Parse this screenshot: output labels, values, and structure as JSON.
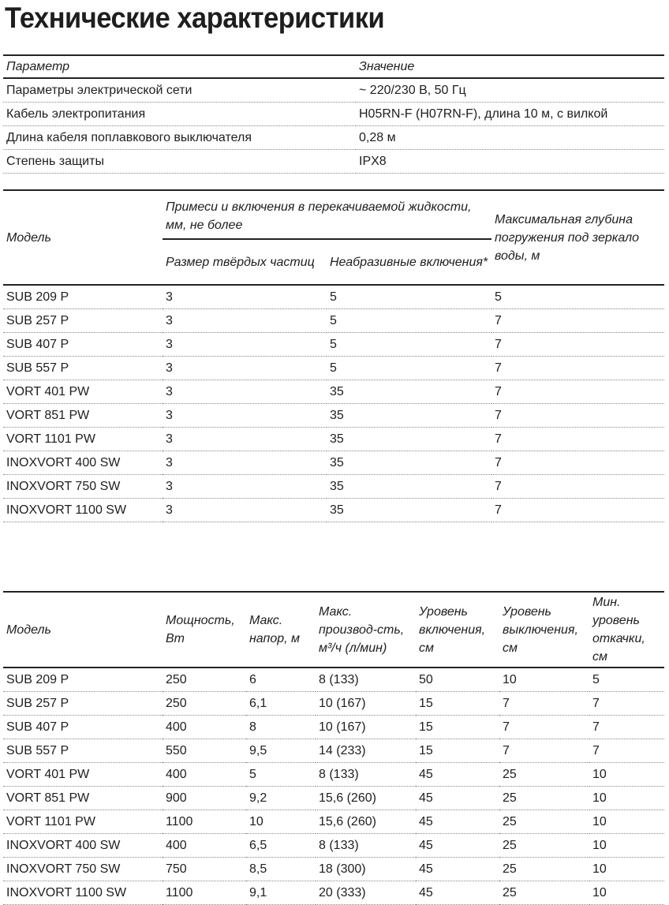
{
  "title": "Технические характеристики",
  "general": {
    "headers": [
      "Параметр",
      "Значение"
    ],
    "rows": [
      [
        "Параметры электрической сети",
        "~ 220/230 В, 50 Гц"
      ],
      [
        "Кабель электропитания",
        "H05RN-F (H07RN-F), длина 10 м, с вилкой"
      ],
      [
        "Длина кабеля поплавкового выключателя",
        "0,28 м"
      ],
      [
        "Степень защиты",
        "IPX8"
      ]
    ]
  },
  "impurities": {
    "model_header": "Модель",
    "group_header": "Примеси и включения в перекачиваемой жидкости, мм, не более",
    "sub_headers": [
      "Размер твёрдых частиц",
      "Неабразивные включения*"
    ],
    "depth_header": "Максимальная глубина погружения под зеркало воды, м",
    "rows": [
      [
        "SUB 209 P",
        "3",
        "5",
        "5"
      ],
      [
        "SUB 257 P",
        "3",
        "5",
        "7"
      ],
      [
        "SUB 407 P",
        "3",
        "5",
        "7"
      ],
      [
        "SUB 557 P",
        "3",
        "5",
        "7"
      ],
      [
        "VORT 401 PW",
        "3",
        "35",
        "7"
      ],
      [
        "VORT 851 PW",
        "3",
        "35",
        "7"
      ],
      [
        "VORT 1101 PW",
        "3",
        "35",
        "7"
      ],
      [
        "INOXVORT 400 SW",
        "3",
        "35",
        "7"
      ],
      [
        "INOXVORT 750 SW",
        "3",
        "35",
        "7"
      ],
      [
        "INOXVORT 1100 SW",
        "3",
        "35",
        "7"
      ]
    ]
  },
  "performance": {
    "headers": [
      "Модель",
      "Мощность, Вт",
      "Макс. напор, м",
      "Макс. производ-сть, м³/ч (л/мин)",
      "Уровень включения, см",
      "Уровень выключения, см",
      "Мин. уровень откачки, см"
    ],
    "rows": [
      [
        "SUB 209 P",
        "250",
        "6",
        "8 (133)",
        "50",
        "10",
        "5"
      ],
      [
        "SUB 257 P",
        "250",
        "6,1",
        "10 (167)",
        "15",
        "7",
        "7"
      ],
      [
        "SUB 407 P",
        "400",
        "8",
        "10 (167)",
        "15",
        "7",
        "7"
      ],
      [
        "SUB 557 P",
        "550",
        "9,5",
        "14 (233)",
        "15",
        "7",
        "7"
      ],
      [
        "VORT 401 PW",
        "400",
        "5",
        "8 (133)",
        "45",
        "25",
        "10"
      ],
      [
        "VORT 851 PW",
        "900",
        "9,2",
        "15,6 (260)",
        "45",
        "25",
        "10"
      ],
      [
        "VORT 1101 PW",
        "1100",
        "10",
        "15,6 (260)",
        "45",
        "25",
        "10"
      ],
      [
        "INOXVORT 400 SW",
        "400",
        "6,5",
        "8 (133)",
        "45",
        "25",
        "10"
      ],
      [
        "INOXVORT 750 SW",
        "750",
        "8,5",
        "18 (300)",
        "45",
        "25",
        "10"
      ],
      [
        "INOXVORT 1100 SW",
        "1100",
        "9,1",
        "20 (333)",
        "45",
        "25",
        "10"
      ]
    ]
  }
}
